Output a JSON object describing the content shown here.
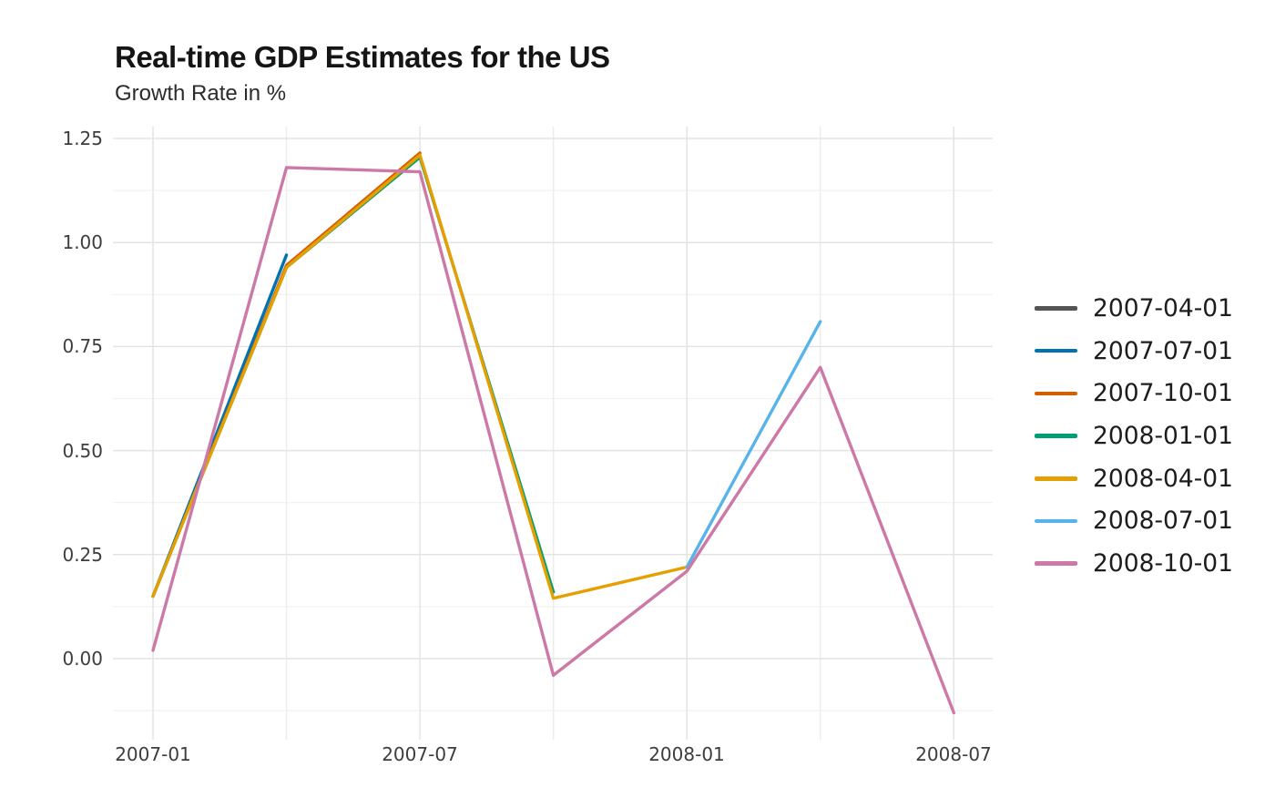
{
  "chart_data": {
    "type": "line",
    "title": "Real-time GDP Estimates for the US",
    "subtitle": "Growth Rate in %",
    "x_categories": [
      "2007-01",
      "2007-04",
      "2007-07",
      "2007-10",
      "2008-01",
      "2008-04",
      "2008-07"
    ],
    "x_tick_labels": [
      "2007-01",
      "2007-07",
      "2008-01",
      "2008-07"
    ],
    "x_tick_category_indices": [
      0,
      2,
      4,
      6
    ],
    "y_tick_labels": [
      "1.25",
      "1.00",
      "0.75",
      "0.50",
      "0.25",
      "0.00"
    ],
    "y_major_gridlines": [
      0.0,
      0.25,
      0.5,
      0.75,
      1.0,
      1.25
    ],
    "y_minor_gridlines": [
      -0.125,
      0.125,
      0.375,
      0.625,
      0.875,
      1.125
    ],
    "x_minor_category_indices": [
      1,
      3,
      5
    ],
    "ylim": [
      -0.195,
      1.276
    ],
    "grid": true,
    "legend_position": "right",
    "colors": {
      "grid_major": "#e4e4e4",
      "grid_minor": "#f1f1f1",
      "title_text": "#151515",
      "tick_text": "#3d3d3d",
      "legend_text": "#1d1d1d"
    },
    "series": [
      {
        "name": "2007-04-01",
        "color": "#545454",
        "values": [
          0.15,
          null,
          null,
          null,
          null,
          null,
          null
        ]
      },
      {
        "name": "2007-07-01",
        "color": "#0072b2",
        "values": [
          0.15,
          0.97,
          null,
          null,
          null,
          null,
          null
        ]
      },
      {
        "name": "2007-10-01",
        "color": "#d55e00",
        "values": [
          0.15,
          0.945,
          1.215,
          null,
          null,
          null,
          null
        ]
      },
      {
        "name": "2008-01-01",
        "color": "#009e73",
        "values": [
          0.15,
          0.94,
          1.205,
          0.16,
          null,
          null,
          null
        ]
      },
      {
        "name": "2008-04-01",
        "color": "#e69f00",
        "values": [
          0.15,
          0.94,
          1.21,
          0.145,
          0.22,
          null,
          null
        ]
      },
      {
        "name": "2008-07-01",
        "color": "#56b4e9",
        "values": [
          null,
          null,
          null,
          null,
          0.22,
          0.81,
          null
        ]
      },
      {
        "name": "2008-10-01",
        "color": "#cc79a7",
        "values": [
          0.02,
          1.18,
          1.17,
          -0.04,
          0.21,
          0.7,
          -0.13
        ]
      }
    ]
  }
}
